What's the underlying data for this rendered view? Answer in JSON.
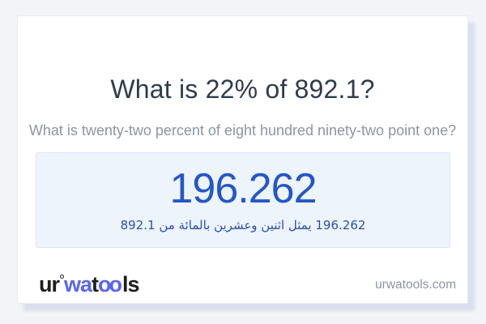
{
  "card": {
    "title": "What is 22% of 892.1?",
    "subtitle": "What is twenty-two percent of eight hundred ninety-two point one?",
    "result": {
      "value": "196.262",
      "description_arabic": "196.262 يمثل اثنين وعشرين بالمائة من 892.1"
    },
    "footer": {
      "logo": {
        "seg1": "ur",
        "seg2": "wa",
        "seg3": "t",
        "seg4": "oo",
        "seg5": "ls"
      },
      "website": "urwatools.com"
    }
  },
  "colors": {
    "page_bg": "#f2f4f8",
    "card_bg": "#ffffff",
    "card_border": "#e9ebf4",
    "title_color": "#2e3b4e",
    "subtitle_color": "#8d95a3",
    "panel_bg": "#edf4fc",
    "panel_border": "#d9e8f8",
    "value_blue": "#2456c9",
    "desc_blue": "#2a4fae",
    "logo_blue": "#5766f2",
    "logo_dark": "#1d1e20",
    "domain_gray": "#8d95a3"
  }
}
